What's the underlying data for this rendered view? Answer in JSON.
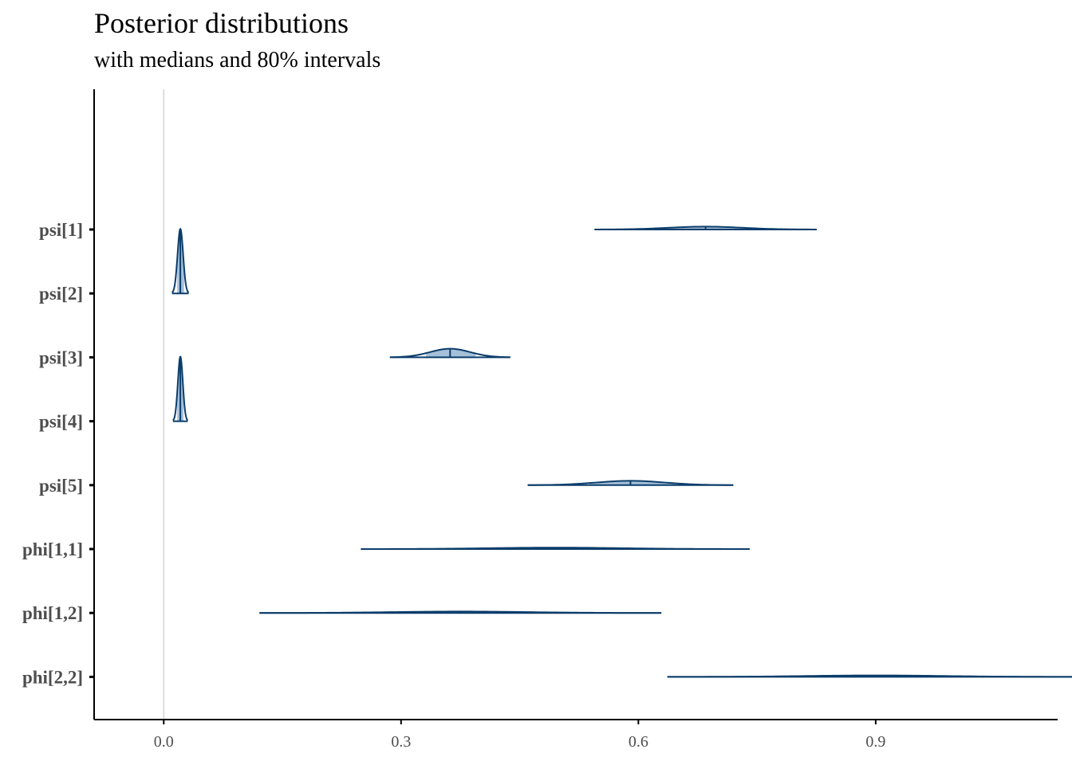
{
  "chart_data": {
    "type": "ridgeline",
    "title": "Posterior distributions",
    "subtitle": "with medians and 80% intervals",
    "xlabel": "",
    "ylabel": "",
    "xlim": [
      -0.088,
      1.13
    ],
    "xticks": [
      0.0,
      0.3,
      0.6,
      0.9
    ],
    "xtick_labels": [
      "0.0",
      "0.3",
      "0.6",
      "0.9"
    ],
    "reference_line": 0.0,
    "grid": false,
    "legend": "none",
    "colors": {
      "fill": "#a6c0d9",
      "line": "#0b3d6b",
      "axis": "#000000",
      "ref": "#dddddd"
    },
    "parameters": [
      {
        "name": "psi[1]",
        "low": 0.625,
        "high": 0.745,
        "median": 0.685,
        "peak": 0.04
      },
      {
        "name": "psi[2]",
        "low": 0.017,
        "high": 0.026,
        "median": 0.021,
        "peak": 0.9
      },
      {
        "name": "psi[3]",
        "low": 0.33,
        "high": 0.395,
        "median": 0.362,
        "peak": 0.12
      },
      {
        "name": "psi[4]",
        "low": 0.017,
        "high": 0.025,
        "median": 0.021,
        "peak": 0.9
      },
      {
        "name": "psi[5]",
        "low": 0.537,
        "high": 0.648,
        "median": 0.59,
        "peak": 0.06
      },
      {
        "name": "phi[1,1]",
        "low": 0.39,
        "high": 0.6,
        "median": 0.495,
        "peak": 0.02
      },
      {
        "name": "phi[1,2]",
        "low": 0.268,
        "high": 0.485,
        "median": 0.375,
        "peak": 0.02
      },
      {
        "name": "phi[2,2]",
        "low": 0.795,
        "high": 1.02,
        "median": 0.9,
        "peak": 0.02
      }
    ]
  }
}
